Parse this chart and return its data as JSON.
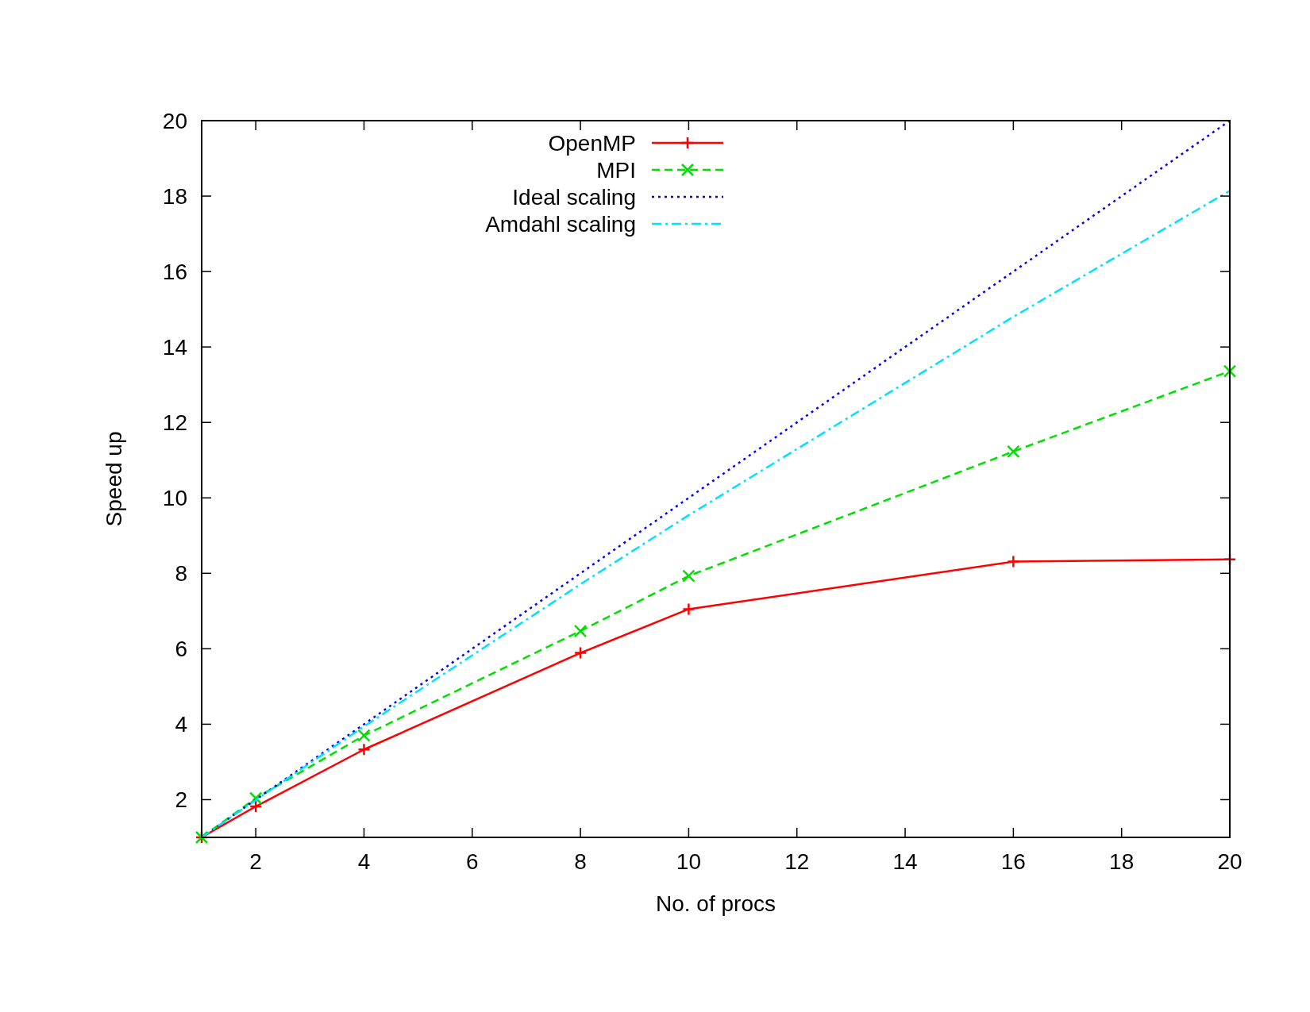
{
  "chart_data": {
    "type": "line",
    "xlabel": "No. of procs",
    "ylabel": "Speed up",
    "xlim": [
      1,
      20
    ],
    "xticks": [
      2,
      4,
      6,
      8,
      10,
      12,
      14,
      16,
      18,
      20
    ],
    "ylim": [
      1,
      20
    ],
    "yticks": [
      2,
      4,
      6,
      8,
      10,
      12,
      14,
      16,
      18,
      20
    ],
    "x": [
      1,
      2,
      4,
      8,
      10,
      16,
      20
    ],
    "grid": false,
    "legend": "top left",
    "series": [
      {
        "name": "OpenMP",
        "color": "#ff0000",
        "values": [
          1,
          1.82,
          3.33,
          5.89,
          7.05,
          8.31,
          8.37
        ],
        "line_style": "solid",
        "marker": "plus"
      },
      {
        "name": "MPI",
        "color": "#00e000",
        "values": [
          1,
          2.04,
          3.7,
          6.47,
          7.93,
          11.23,
          13.36
        ],
        "line_style": "dashed",
        "marker": "cross"
      },
      {
        "name": "Ideal scaling",
        "color": "#0000ff",
        "values": [
          1,
          2,
          4,
          8,
          10,
          16,
          20
        ],
        "line_style": "dotted",
        "marker": "none"
      },
      {
        "name": "Amdahl scaling",
        "color": "#00e0ff",
        "values": [
          1,
          1.99,
          3.94,
          7.71,
          9.54,
          14.8,
          18.14
        ],
        "line_style": "dashdot",
        "marker": "none"
      }
    ]
  }
}
